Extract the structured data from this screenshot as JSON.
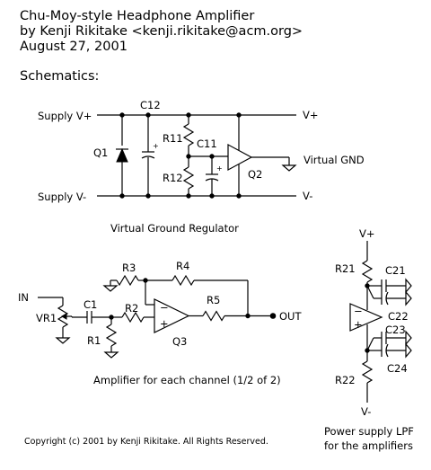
{
  "header": {
    "title": "Chu-Moy-style Headphone Amplifier",
    "author": "by Kenji Rikitake <kenji.rikitake@acm.org>",
    "date": "August 27, 2001",
    "section": "Schematics:"
  },
  "regulator": {
    "supply_pos": "Supply V+",
    "supply_neg": "Supply V-",
    "vplus": "V+",
    "vminus": "V-",
    "q1": "Q1",
    "c12": "C12",
    "r11": "R11",
    "c11": "C11",
    "r12": "R12",
    "q2": "Q2",
    "vgnd": "Virtual GND",
    "caption": "Virtual Ground Regulator"
  },
  "amplifier": {
    "in": "IN",
    "vr1": "VR1",
    "c1": "C1",
    "r1": "R1",
    "r2": "R2",
    "r3": "R3",
    "r4": "R4",
    "r5": "R5",
    "q3": "Q3",
    "out": "OUT",
    "minus": "−",
    "plus": "+",
    "caption": "Amplifier for each channel (1/2 of 2)"
  },
  "lpf": {
    "vplus": "V+",
    "vminus": "V-",
    "r21": "R21",
    "r22": "R22",
    "c21": "C21",
    "c22": "C22",
    "c23": "C23",
    "c24": "C24",
    "minus": "−",
    "plus": "+",
    "caption_1": "Power supply LPF",
    "caption_2": "for the amplifiers"
  },
  "footer": {
    "copyright": "Copyright (c) 2001 by Kenji Rikitake. All Rights Reserved."
  }
}
